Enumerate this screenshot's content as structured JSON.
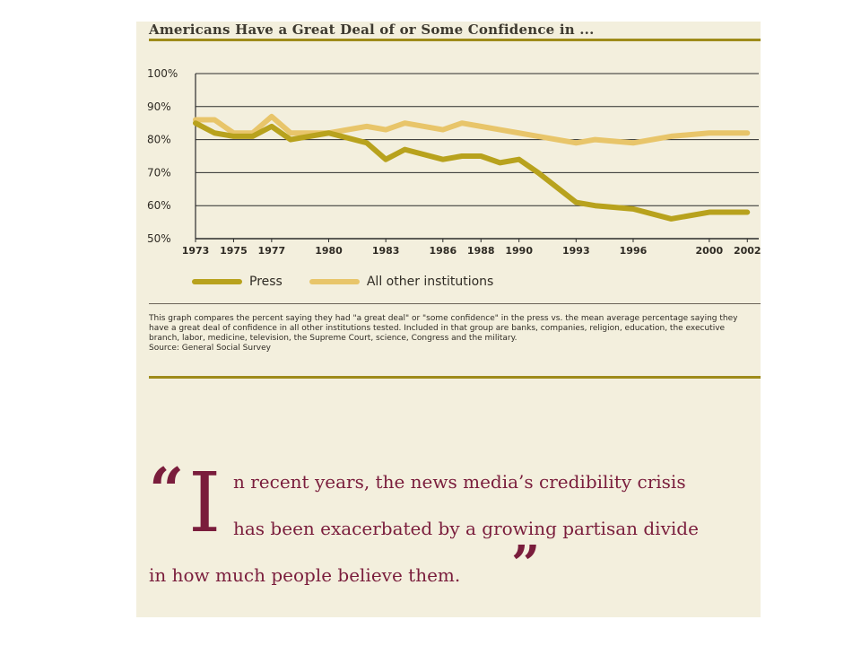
{
  "chart_data": {
    "type": "line",
    "title": "Americans Have a Great Deal of or Some Confidence in ...",
    "x_tick_labels": [
      "1973",
      "1975",
      "1977",
      "1980",
      "1983",
      "1986",
      "1988",
      "1990",
      "1993",
      "1996",
      "2000",
      "2002"
    ],
    "y_tick_labels": [
      "100%",
      "90%",
      "80%",
      "70%",
      "60%",
      "50%"
    ],
    "ylim": [
      50,
      100
    ],
    "x": [
      "1973",
      "1974",
      "1975",
      "1976",
      "1977",
      "1978",
      "1980",
      "1982",
      "1983",
      "1984",
      "1986",
      "1987",
      "1988",
      "1989",
      "1990",
      "1991",
      "1993",
      "1994",
      "1996",
      "1998",
      "2000",
      "2002"
    ],
    "series": [
      {
        "name": "Press",
        "color": "#b8a21d",
        "values": [
          85,
          82,
          81,
          81,
          84,
          80,
          82,
          79,
          74,
          77,
          74,
          75,
          75,
          73,
          74,
          70,
          61,
          60,
          59,
          56,
          58,
          58
        ]
      },
      {
        "name": "All other institutions",
        "color": "#e8c56a",
        "values": [
          86,
          86,
          82,
          82,
          87,
          82,
          82,
          84,
          83,
          85,
          83,
          85,
          84,
          83,
          82,
          81,
          79,
          80,
          79,
          81,
          82,
          82
        ]
      }
    ],
    "grid": true,
    "legend_position": "bottom"
  },
  "note": {
    "text": "This graph compares the percent saying they had \"a great deal\" or \"some confidence\" in the press vs. the mean average percentage saying they have a great deal of confidence in all other institutions tested. Included in that group are banks, companies, religion, education, the executive branch, labor, medicine, television, the Supreme Court, science, Congress and the military.",
    "source": "Source: General Social Survey"
  },
  "quote": {
    "open_mark": "“",
    "drop_cap": "I",
    "line1": "n recent years, the news media’s credibility crisis",
    "line2": "has been exacerbated by a growing partisan divide",
    "line3": "in how much people believe them.",
    "close_mark": "”"
  },
  "colors": {
    "background": "#f3efdd",
    "rule": "#9e8b1a",
    "quote_text": "#7a1d3c"
  }
}
